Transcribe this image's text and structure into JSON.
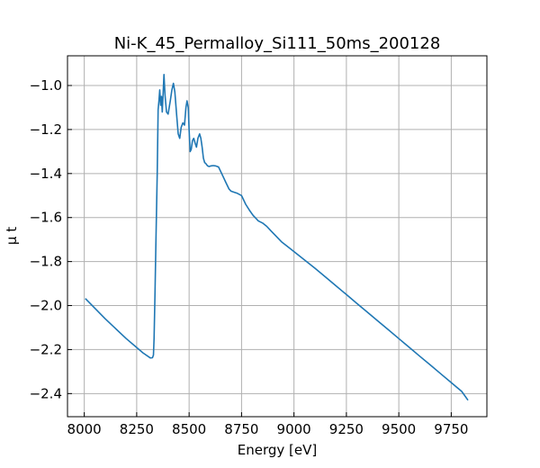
{
  "chart_data": {
    "type": "line",
    "title": "Ni-K_45_Permalloy_Si111_50ms_200128",
    "xlabel": "Energy [eV]",
    "ylabel": "μ t",
    "xlim": [
      7920,
      9920
    ],
    "ylim": [
      -2.505,
      -0.865
    ],
    "grid": true,
    "xticks": [
      8000,
      8250,
      8500,
      8750,
      9000,
      9250,
      9500,
      9750
    ],
    "xtick_labels": [
      "8000",
      "8250",
      "8500",
      "8750",
      "9000",
      "9250",
      "9500",
      "9750"
    ],
    "yticks": [
      -1.0,
      -1.2,
      -1.4,
      -1.6,
      -1.8,
      -2.0,
      -2.2,
      -2.4
    ],
    "ytick_labels": [
      "−1.0",
      "−1.2",
      "−1.4",
      "−1.6",
      "−1.8",
      "−2.0",
      "−2.2",
      "−2.4"
    ],
    "series": [
      {
        "name": "Ni-K_45_Permalloy_Si111_50ms_200128",
        "color": "#1f77b4",
        "x": [
          8005,
          8100,
          8200,
          8280,
          8315,
          8325,
          8330,
          8333,
          8337,
          8342,
          8348,
          8352,
          8356,
          8360,
          8364,
          8368,
          8372,
          8376,
          8380,
          8385,
          8392,
          8400,
          8410,
          8418,
          8425,
          8432,
          8440,
          8448,
          8455,
          8462,
          8470,
          8478,
          8485,
          8490,
          8496,
          8500,
          8505,
          8510,
          8516,
          8522,
          8528,
          8535,
          8542,
          8550,
          8556,
          8562,
          8568,
          8574,
          8580,
          8588,
          8595,
          8605,
          8615,
          8625,
          8640,
          8655,
          8665,
          8675,
          8690,
          8700,
          8715,
          8730,
          8750,
          8770,
          8790,
          8805,
          8815,
          8830,
          8850,
          8870,
          8890,
          8910,
          8940,
          8980,
          9020,
          9060,
          9100,
          9150,
          9200,
          9250,
          9300,
          9350,
          9400,
          9450,
          9500,
          9550,
          9600,
          9650,
          9700,
          9750,
          9800,
          9830
        ],
        "y": [
          -1.968,
          -2.06,
          -2.15,
          -2.215,
          -2.238,
          -2.237,
          -2.225,
          -2.15,
          -1.95,
          -1.7,
          -1.4,
          -1.11,
          -1.07,
          -1.02,
          -1.09,
          -1.05,
          -1.12,
          -1.04,
          -0.95,
          -1.04,
          -1.12,
          -1.13,
          -1.07,
          -1.02,
          -0.99,
          -1.03,
          -1.13,
          -1.22,
          -1.24,
          -1.19,
          -1.17,
          -1.18,
          -1.1,
          -1.07,
          -1.1,
          -1.2,
          -1.3,
          -1.29,
          -1.25,
          -1.24,
          -1.26,
          -1.28,
          -1.24,
          -1.22,
          -1.24,
          -1.28,
          -1.33,
          -1.35,
          -1.355,
          -1.365,
          -1.368,
          -1.365,
          -1.364,
          -1.365,
          -1.37,
          -1.4,
          -1.42,
          -1.44,
          -1.47,
          -1.48,
          -1.485,
          -1.49,
          -1.5,
          -1.54,
          -1.57,
          -1.59,
          -1.6,
          -1.615,
          -1.625,
          -1.64,
          -1.66,
          -1.68,
          -1.71,
          -1.74,
          -1.77,
          -1.8,
          -1.83,
          -1.87,
          -1.91,
          -1.95,
          -1.99,
          -2.03,
          -2.07,
          -2.11,
          -2.15,
          -2.19,
          -2.23,
          -2.27,
          -2.31,
          -2.35,
          -2.39,
          -2.43
        ]
      }
    ]
  }
}
